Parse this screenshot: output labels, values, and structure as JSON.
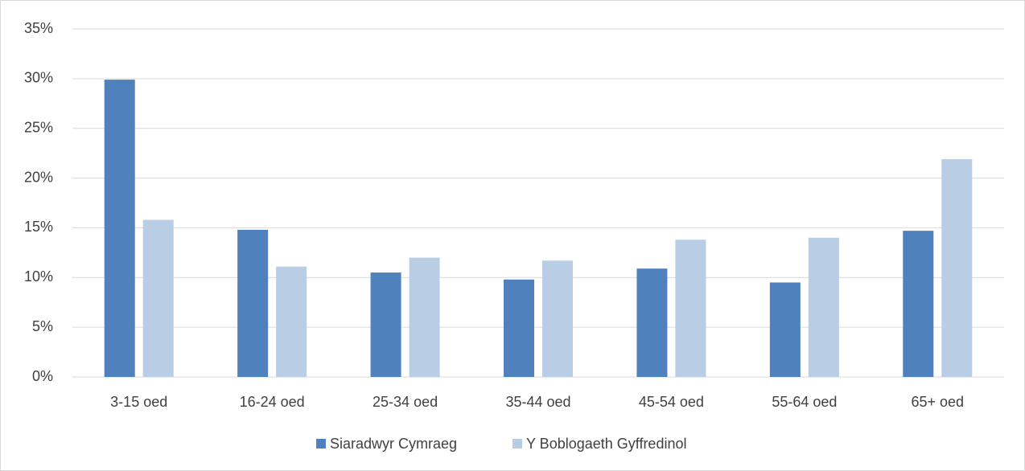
{
  "chart_data": {
    "type": "bar",
    "categories": [
      "3-15 oed",
      "16-24 oed",
      "25-34 oed",
      "35-44 oed",
      "45-54 oed",
      "55-64 oed",
      "65+ oed"
    ],
    "series": [
      {
        "name": "Siaradwyr Cymraeg",
        "color": "#4f81bd",
        "values": [
          29.9,
          14.8,
          10.5,
          9.8,
          10.9,
          9.5,
          14.7
        ]
      },
      {
        "name": "Y Boblogaeth Gyffredinol",
        "color": "#b9cde5",
        "values": [
          15.8,
          11.1,
          12.0,
          11.7,
          13.8,
          14.0,
          21.9
        ]
      }
    ],
    "ylim": [
      0,
      35
    ],
    "yticks": [
      {
        "value": 0,
        "label": "0%"
      },
      {
        "value": 5,
        "label": "5%"
      },
      {
        "value": 10,
        "label": "10%"
      },
      {
        "value": 15,
        "label": "15%"
      },
      {
        "value": 20,
        "label": "20%"
      },
      {
        "value": 25,
        "label": "25%"
      },
      {
        "value": 30,
        "label": "30%"
      },
      {
        "value": 35,
        "label": "35%"
      }
    ],
    "grid": true,
    "legend": "bottom"
  }
}
